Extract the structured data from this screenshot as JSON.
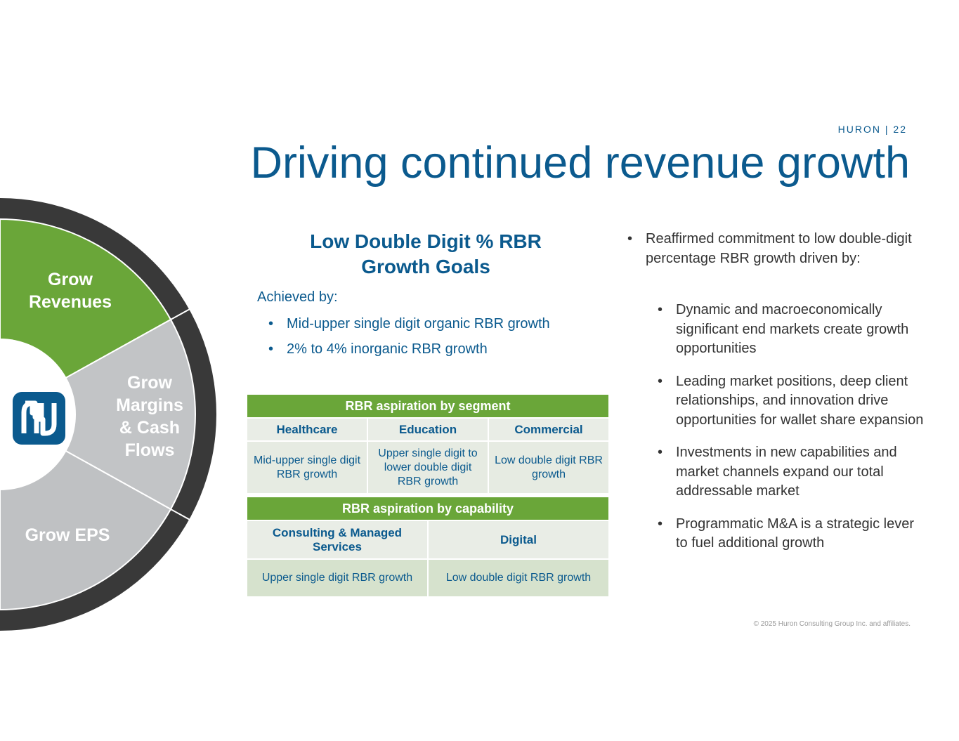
{
  "header": {
    "page_label": "HURON | 22",
    "title": "Driving continued revenue growth"
  },
  "wheel": {
    "segments": [
      "Grow Revenues",
      "Grow Margins & Cash Flows",
      "Grow EPS"
    ]
  },
  "goals": {
    "heading": "Low Double Digit % RBR Growth Goals",
    "intro": "Achieved by:",
    "bullets": [
      "Mid-upper single digit organic RBR growth",
      "2% to 4% inorganic RBR growth"
    ]
  },
  "segment_table": {
    "title": "RBR aspiration by segment",
    "headers": [
      "Healthcare",
      "Education",
      "Commercial"
    ],
    "cells": [
      "Mid-upper single digit RBR growth",
      "Upper single digit to lower double digit RBR growth",
      "Low double digit RBR growth"
    ]
  },
  "capability_table": {
    "title": "RBR aspiration by capability",
    "headers": [
      "Consulting & Managed Services",
      "Digital"
    ],
    "cells": [
      "Upper single digit RBR growth",
      "Low double digit RBR growth"
    ]
  },
  "commentary": {
    "lead": "Reaffirmed commitment to low double-digit percentage RBR growth driven by:",
    "bullets": [
      "Dynamic and macroeconomically significant end markets create growth opportunities",
      "Leading market positions, deep client relationships, and innovation drive opportunities for wallet share expansion",
      "Investments in new capabilities and market channels expand our total addressable market",
      "Programmatic M&A is a strategic lever to fuel additional growth"
    ]
  },
  "footer": "© 2025 Huron Consulting Group Inc. and affiliates."
}
